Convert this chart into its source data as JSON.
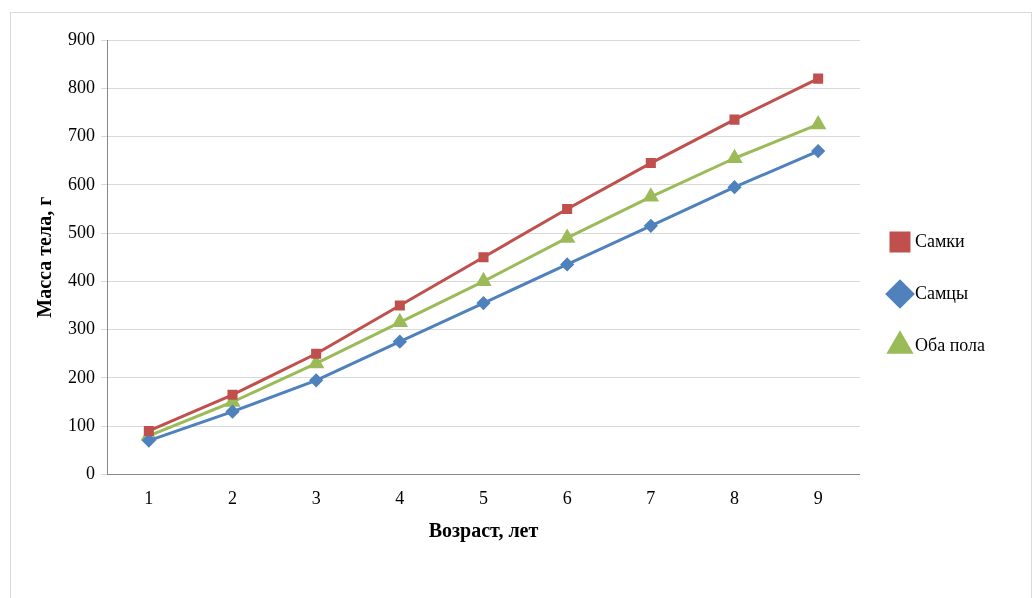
{
  "chart_data": {
    "type": "line",
    "xlabel": "Возраст, лет",
    "ylabel": "Масса тела, г",
    "categories": [
      "1",
      "2",
      "3",
      "4",
      "5",
      "6",
      "7",
      "8",
      "9"
    ],
    "series": [
      {
        "name": "Самки",
        "color": "#c0504d",
        "marker": "square",
        "values": [
          90,
          165,
          250,
          350,
          450,
          550,
          645,
          735,
          820
        ]
      },
      {
        "name": "Самцы",
        "color": "#4f81bd",
        "marker": "diamond",
        "values": [
          70,
          130,
          195,
          275,
          355,
          435,
          515,
          595,
          670
        ]
      },
      {
        "name": "Оба пола",
        "color": "#9bbb59",
        "marker": "triangle",
        "values": [
          80,
          150,
          230,
          315,
          400,
          490,
          575,
          655,
          725
        ]
      }
    ],
    "ylim": [
      0,
      900
    ],
    "yticks": [
      0,
      100,
      200,
      300,
      400,
      500,
      600,
      700,
      800,
      900
    ],
    "grid": "y",
    "legend": "right",
    "line_style": "solid"
  }
}
